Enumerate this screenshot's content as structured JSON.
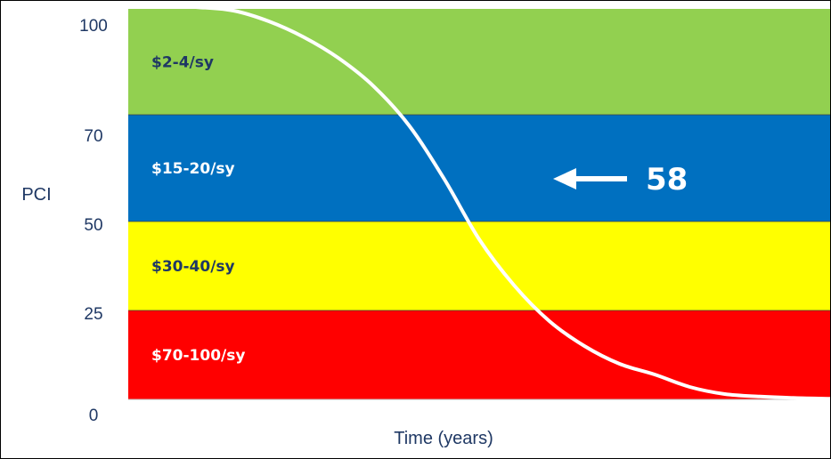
{
  "chart_data": {
    "type": "line",
    "title": "",
    "xlabel": "Time (years)",
    "ylabel": "PCI",
    "ylim": [
      0,
      100
    ],
    "y_ticks": [
      {
        "value": 0,
        "label": "0"
      },
      {
        "value": 25,
        "label": "25"
      },
      {
        "value": 50,
        "label": "50"
      },
      {
        "value": 70,
        "label": "70"
      },
      {
        "value": 100,
        "label": "100"
      }
    ],
    "bands": [
      {
        "range": [
          70,
          100
        ],
        "label": "$2-4/sy",
        "color": "#92d050",
        "label_color": "#1f3864"
      },
      {
        "range": [
          50,
          70
        ],
        "label": "$15-20/sy",
        "color": "#0070c0",
        "label_color": "#ffffff"
      },
      {
        "range": [
          25,
          50
        ],
        "label": "$30-40/sy",
        "color": "#ffff00",
        "label_color": "#1f3864"
      },
      {
        "range": [
          0,
          25
        ],
        "label": "$70-100/sy",
        "color": "#ff0000",
        "label_color": "#ffffff"
      }
    ],
    "series": [
      {
        "color": "#ffffff",
        "x": [
          0,
          0.05,
          0.1,
          0.15,
          0.2,
          0.25,
          0.3,
          0.35,
          0.4,
          0.45,
          0.5,
          0.55,
          0.6,
          0.65,
          0.7,
          0.75,
          0.8,
          0.85,
          0.9,
          0.95,
          1.0
        ],
        "values": [
          104,
          103.5,
          102,
          99.5,
          96.5,
          92,
          86,
          78,
          68,
          58,
          45,
          32,
          22,
          15,
          10,
          7,
          3.5,
          1.5,
          0.8,
          0.4,
          0.2
        ]
      }
    ],
    "annotation": {
      "text": "58",
      "value": 58,
      "color": "#ffffff"
    }
  }
}
